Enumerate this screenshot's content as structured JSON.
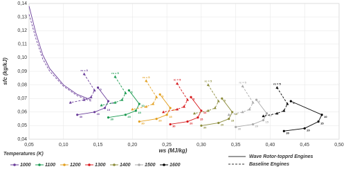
{
  "chart_data": {
    "type": "line",
    "xlabel": "ws (MJ/kg)",
    "ylabel": "sfc (kg/kJ)",
    "xlim": [
      0.05,
      0.5
    ],
    "xticks": [
      {
        "value": 0.05,
        "label": "0,05"
      },
      {
        "value": 0.1,
        "label": "0,10"
      },
      {
        "value": 0.15,
        "label": "0,15"
      },
      {
        "value": 0.2,
        "label": "0,20"
      },
      {
        "value": 0.25,
        "label": "0,25"
      },
      {
        "value": 0.3,
        "label": "0,30"
      },
      {
        "value": 0.35,
        "label": "0,35"
      },
      {
        "value": 0.4,
        "label": "0,40"
      },
      {
        "value": 0.45,
        "label": "0,45"
      },
      {
        "value": 0.5,
        "label": "0,50"
      }
    ],
    "ylim": [
      0.04,
      0.14
    ],
    "yticks": [
      {
        "value": 0.04,
        "label": "0,04"
      },
      {
        "value": 0.05,
        "label": "0,05"
      },
      {
        "value": 0.06,
        "label": "0,06"
      },
      {
        "value": 0.07,
        "label": "0,07"
      },
      {
        "value": 0.08,
        "label": "0,08"
      },
      {
        "value": 0.09,
        "label": "0,09"
      },
      {
        "value": 0.1,
        "label": "0,10"
      },
      {
        "value": 0.11,
        "label": "0,11"
      },
      {
        "value": 0.12,
        "label": "0,12"
      },
      {
        "value": 0.13,
        "label": "0,13"
      },
      {
        "value": 0.14,
        "label": "0,14"
      }
    ],
    "legend_title": "Temperatures (K)",
    "style_legend": [
      "Wave Rotor-topprd Engines",
      "Baseline Engines"
    ],
    "r_label": "rc = 5",
    "pressure_ratios": [
      5,
      10,
      15,
      20,
      30
    ],
    "envelope": {
      "color": "#6a3d9a",
      "x": [
        0.05,
        0.06,
        0.07,
        0.08,
        0.1,
        0.12,
        0.14
      ],
      "wave": [
        0.138,
        0.118,
        0.102,
        0.092,
        0.08,
        0.073,
        0.069
      ],
      "baseline": [
        0.132,
        0.114,
        0.099,
        0.09,
        0.079,
        0.072,
        0.068
      ]
    },
    "series": [
      {
        "name": "1000",
        "color": "#6a3d9a",
        "baseline": {
          "x": [
            0.13,
            0.145,
            0.14,
            0.13,
            0.11
          ],
          "y": [
            0.088,
            0.076,
            0.071,
            0.069,
            0.067
          ]
        },
        "wave": {
          "x": [
            0.15,
            0.165,
            0.16,
            0.145,
            0.12
          ],
          "y": [
            0.078,
            0.068,
            0.063,
            0.06,
            0.058
          ]
        }
      },
      {
        "name": "1100",
        "color": "#1a9a50",
        "baseline": {
          "x": [
            0.175,
            0.19,
            0.185,
            0.175,
            0.155
          ],
          "y": [
            0.086,
            0.074,
            0.069,
            0.067,
            0.065
          ]
        },
        "wave": {
          "x": [
            0.195,
            0.21,
            0.205,
            0.19,
            0.165
          ],
          "y": [
            0.076,
            0.066,
            0.061,
            0.058,
            0.056
          ]
        }
      },
      {
        "name": "1200",
        "color": "#e3a020",
        "baseline": {
          "x": [
            0.22,
            0.235,
            0.23,
            0.22,
            0.2
          ],
          "y": [
            0.083,
            0.071,
            0.066,
            0.064,
            0.062
          ]
        },
        "wave": {
          "x": [
            0.24,
            0.255,
            0.25,
            0.235,
            0.21
          ],
          "y": [
            0.073,
            0.063,
            0.058,
            0.055,
            0.053
          ]
        }
      },
      {
        "name": "1300",
        "color": "#d7191c",
        "baseline": {
          "x": [
            0.265,
            0.28,
            0.275,
            0.265,
            0.245
          ],
          "y": [
            0.081,
            0.069,
            0.064,
            0.062,
            0.06
          ]
        },
        "wave": {
          "x": [
            0.285,
            0.3,
            0.295,
            0.28,
            0.255
          ],
          "y": [
            0.071,
            0.061,
            0.056,
            0.053,
            0.051
          ]
        }
      },
      {
        "name": "1400",
        "color": "#8c8c3c",
        "baseline": {
          "x": [
            0.31,
            0.325,
            0.32,
            0.31,
            0.29
          ],
          "y": [
            0.08,
            0.068,
            0.063,
            0.061,
            0.059
          ]
        },
        "wave": {
          "x": [
            0.33,
            0.345,
            0.34,
            0.325,
            0.3
          ],
          "y": [
            0.07,
            0.06,
            0.055,
            0.052,
            0.05
          ]
        }
      },
      {
        "name": "1500",
        "color": "#aaaaaa",
        "baseline": {
          "x": [
            0.36,
            0.375,
            0.37,
            0.36,
            0.34
          ],
          "y": [
            0.079,
            0.067,
            0.062,
            0.06,
            0.058
          ]
        },
        "wave": {
          "x": [
            0.38,
            0.395,
            0.39,
            0.375,
            0.35
          ],
          "y": [
            0.069,
            0.059,
            0.054,
            0.051,
            0.049
          ]
        }
      },
      {
        "name": "1600",
        "color": "#000000",
        "baseline": {
          "x": [
            0.41,
            0.425,
            0.42,
            0.41,
            0.39
          ],
          "y": [
            0.078,
            0.066,
            0.061,
            0.059,
            0.057
          ]
        },
        "wave": {
          "x": [
            0.43,
            0.475,
            0.47,
            0.45,
            0.42
          ],
          "y": [
            0.068,
            0.058,
            0.053,
            0.048,
            0.046
          ]
        }
      }
    ]
  }
}
